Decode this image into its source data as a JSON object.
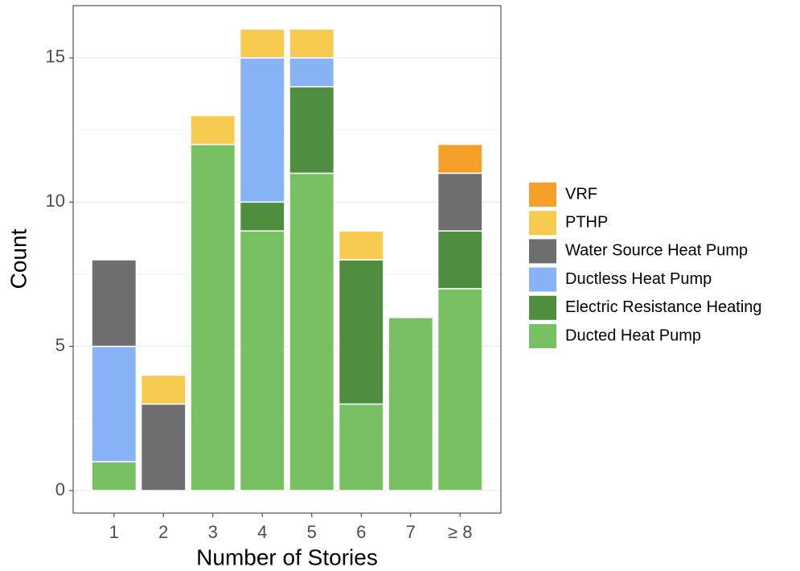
{
  "chart_data": {
    "type": "stacked_bar",
    "x_label": "Number of Stories",
    "y_label": "Count",
    "categories": [
      "1",
      "2",
      "3",
      "4",
      "5",
      "6",
      "7",
      "≥ 8"
    ],
    "series": [
      {
        "name": "Ducted Heat Pump",
        "color": "#77C163",
        "values": [
          1,
          0,
          12,
          9,
          11,
          3,
          6,
          7
        ]
      },
      {
        "name": "Electric Resistance Heating",
        "color": "#4D8F3F",
        "values": [
          0,
          0,
          0,
          1,
          3,
          5,
          0,
          2
        ]
      },
      {
        "name": "Ductless Heat Pump",
        "color": "#88B4F7",
        "values": [
          4,
          0,
          0,
          5,
          1,
          0,
          0,
          0
        ]
      },
      {
        "name": "Water Source Heat Pump",
        "color": "#6E6E6E",
        "values": [
          3,
          3,
          0,
          0,
          0,
          0,
          0,
          2
        ]
      },
      {
        "name": "PTHP",
        "color": "#F7CA50",
        "values": [
          0,
          1,
          1,
          1,
          1,
          1,
          0,
          0
        ]
      },
      {
        "name": "VRF",
        "color": "#F6A02A",
        "values": [
          0,
          0,
          0,
          0,
          0,
          0,
          0,
          1
        ]
      }
    ],
    "ylim": [
      -0.78,
      16.81
    ],
    "yticks": [
      0,
      5,
      10,
      15
    ],
    "minor_yticks": [
      2.5,
      7.5,
      12.5
    ],
    "grid": true
  }
}
